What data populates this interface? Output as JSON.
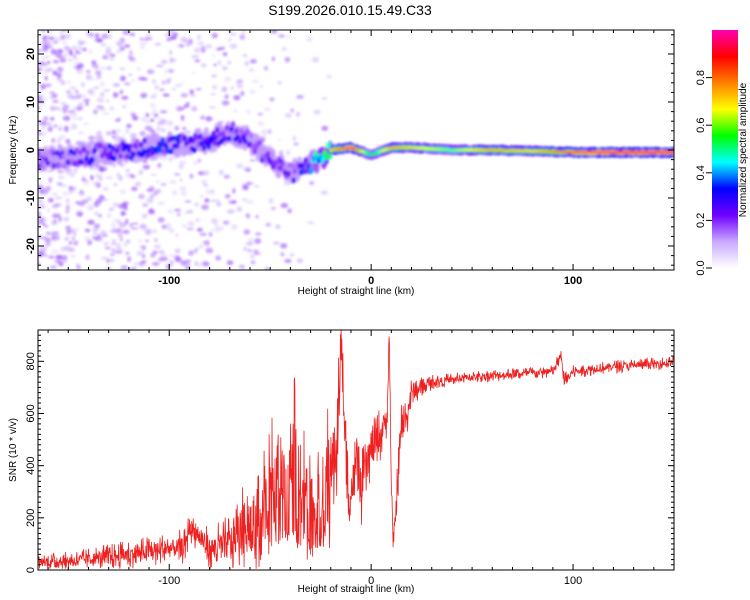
{
  "title": "S199.2026.010.15.49.C33",
  "colorbar": {
    "label": "Normalized spectral amplitude",
    "ticks": [
      "0.0",
      "0.2",
      "0.4",
      "0.6",
      "0.8"
    ],
    "tick_values": [
      0.0,
      0.2,
      0.4,
      0.6,
      0.8
    ],
    "range": [
      0,
      1
    ],
    "colors": [
      "#ffffff",
      "#c8a8ff",
      "#7000ff",
      "#0000ff",
      "#00ffff",
      "#00ff00",
      "#ffff00",
      "#ff8000",
      "#ff0000",
      "#ff00b0"
    ]
  },
  "chart_data": [
    {
      "type": "heatmap",
      "title": "S199.2026.010.15.49.C33",
      "xlabel": "Height of straight line (km)",
      "ylabel": "Frequency (Hz)",
      "xlim": [
        -165,
        150
      ],
      "ylim": [
        -25,
        25
      ],
      "x_ticks": [
        -100,
        0,
        100
      ],
      "x_tick_labels": [
        "-100",
        "0",
        "100"
      ],
      "y_ticks": [
        -20,
        -10,
        0,
        10,
        20
      ],
      "y_tick_labels": [
        "-20",
        "-10",
        "0",
        "10",
        "20"
      ],
      "ridge": {
        "x": [
          -160,
          -140,
          -120,
          -100,
          -80,
          -70,
          -60,
          -50,
          -40,
          -30,
          -20,
          -10,
          0,
          10,
          20,
          40,
          60,
          80,
          100,
          120,
          148
        ],
        "freq": [
          -2,
          -1,
          0,
          1,
          2,
          4,
          2,
          -2,
          -5,
          -3,
          0,
          0.5,
          -1,
          0.5,
          0.5,
          0,
          0,
          -0.2,
          -0.5,
          -0.5,
          -0.5
        ],
        "amplitude": [
          0.25,
          0.3,
          0.35,
          0.35,
          0.3,
          0.3,
          0.3,
          0.25,
          0.25,
          0.4,
          0.7,
          0.9,
          0.5,
          0.75,
          0.7,
          0.6,
          0.75,
          0.7,
          0.85,
          0.95,
          0.95
        ]
      }
    },
    {
      "type": "line",
      "xlabel": "Height of straight line (km)",
      "ylabel": "SNR (10 * v/v)",
      "xlim": [
        -165,
        150
      ],
      "ylim": [
        0,
        920
      ],
      "x_ticks": [
        -100,
        0,
        100
      ],
      "x_tick_labels": [
        "-100",
        "0",
        "100"
      ],
      "y_ticks": [
        0,
        200,
        400,
        600,
        800
      ],
      "y_tick_labels": [
        "0",
        "200",
        "400",
        "600",
        "800"
      ],
      "color": "#ee2020",
      "series": [
        {
          "name": "SNR",
          "x": [
            -165,
            -150,
            -130,
            -110,
            -92,
            -90,
            -80,
            -70,
            -65,
            -60,
            -55,
            -50,
            -48,
            -45,
            -42,
            -38,
            -35,
            -30,
            -28,
            -25,
            -20,
            -17,
            -15,
            -14,
            -12,
            -10,
            -7,
            -5,
            -3,
            0,
            3,
            5,
            8,
            9,
            10,
            11,
            12,
            15,
            18,
            20,
            25,
            30,
            40,
            50,
            60,
            70,
            80,
            90,
            94,
            95,
            96,
            98,
            100,
            110,
            120,
            130,
            140,
            150
          ],
          "y": [
            30,
            35,
            50,
            70,
            90,
            170,
            80,
            100,
            150,
            200,
            220,
            280,
            420,
            360,
            300,
            480,
            380,
            250,
            300,
            320,
            400,
            450,
            900,
            700,
            350,
            280,
            420,
            300,
            380,
            450,
            500,
            520,
            600,
            900,
            300,
            80,
            200,
            550,
            600,
            680,
            700,
            720,
            730,
            740,
            745,
            750,
            755,
            760,
            820,
            750,
            730,
            740,
            760,
            770,
            780,
            785,
            790,
            795
          ],
          "noise": [
            30,
            35,
            50,
            60,
            70,
            60,
            80,
            120,
            150,
            200,
            230,
            260,
            240,
            230,
            220,
            260,
            250,
            200,
            220,
            240,
            260,
            200,
            150,
            150,
            180,
            120,
            150,
            150,
            120,
            100,
            120,
            100,
            80,
            60,
            60,
            60,
            100,
            100,
            80,
            60,
            40,
            30,
            25,
            25,
            25,
            25,
            25,
            25,
            30,
            30,
            30,
            25,
            25,
            25,
            25,
            25,
            25,
            25
          ]
        }
      ]
    }
  ]
}
